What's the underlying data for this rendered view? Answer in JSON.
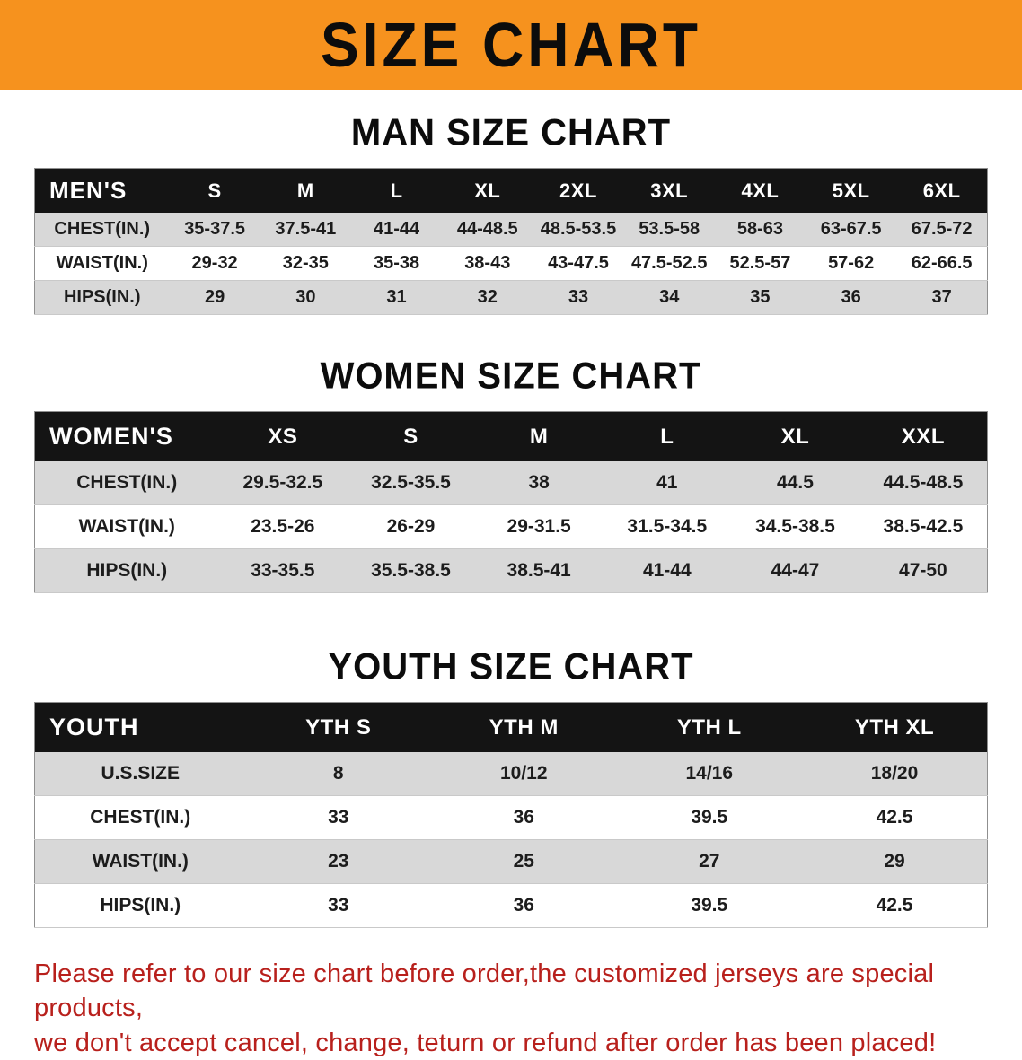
{
  "banner": {
    "title": "SIZE CHART"
  },
  "colors": {
    "banner_bg": "#f6921e",
    "table_header_bg": "#141414",
    "table_header_text": "#ffffff",
    "shaded_row_bg": "#d8d8d8",
    "disclaimer_text": "#b8201c"
  },
  "sections": [
    {
      "id": "men",
      "title": "MAN SIZE CHART",
      "header": [
        "MEN'S",
        "S",
        "M",
        "L",
        "XL",
        "2XL",
        "3XL",
        "4XL",
        "5XL",
        "6XL"
      ],
      "rows": [
        [
          "CHEST(IN.)",
          "35-37.5",
          "37.5-41",
          "41-44",
          "44-48.5",
          "48.5-53.5",
          "53.5-58",
          "58-63",
          "63-67.5",
          "67.5-72"
        ],
        [
          "WAIST(IN.)",
          "29-32",
          "32-35",
          "35-38",
          "38-43",
          "43-47.5",
          "47.5-52.5",
          "52.5-57",
          "57-62",
          "62-66.5"
        ],
        [
          "HIPS(IN.)",
          "29",
          "30",
          "31",
          "32",
          "33",
          "34",
          "35",
          "36",
          "37"
        ]
      ]
    },
    {
      "id": "women",
      "title": "WOMEN SIZE CHART",
      "header": [
        "WOMEN'S",
        "XS",
        "S",
        "M",
        "L",
        "XL",
        "XXL"
      ],
      "rows": [
        [
          "CHEST(IN.)",
          "29.5-32.5",
          "32.5-35.5",
          "38",
          "41",
          "44.5",
          "44.5-48.5"
        ],
        [
          "WAIST(IN.)",
          "23.5-26",
          "26-29",
          "29-31.5",
          "31.5-34.5",
          "34.5-38.5",
          "38.5-42.5"
        ],
        [
          "HIPS(IN.)",
          "33-35.5",
          "35.5-38.5",
          "38.5-41",
          "41-44",
          "44-47",
          "47-50"
        ]
      ]
    },
    {
      "id": "youth",
      "title": "YOUTH SIZE CHART",
      "header": [
        "YOUTH",
        "YTH S",
        "YTH M",
        "YTH L",
        "YTH XL"
      ],
      "rows": [
        [
          "U.S.SIZE",
          "8",
          "10/12",
          "14/16",
          "18/20"
        ],
        [
          "CHEST(IN.)",
          "33",
          "36",
          "39.5",
          "42.5"
        ],
        [
          "WAIST(IN.)",
          "23",
          "25",
          "27",
          "29"
        ],
        [
          "HIPS(IN.)",
          "33",
          "36",
          "39.5",
          "42.5"
        ]
      ]
    }
  ],
  "disclaimer": {
    "line1": "Please refer to our size chart before order,the customized jerseys are special products,",
    "line2": "we don't accept cancel, change, teturn or refund after order has been placed!"
  }
}
